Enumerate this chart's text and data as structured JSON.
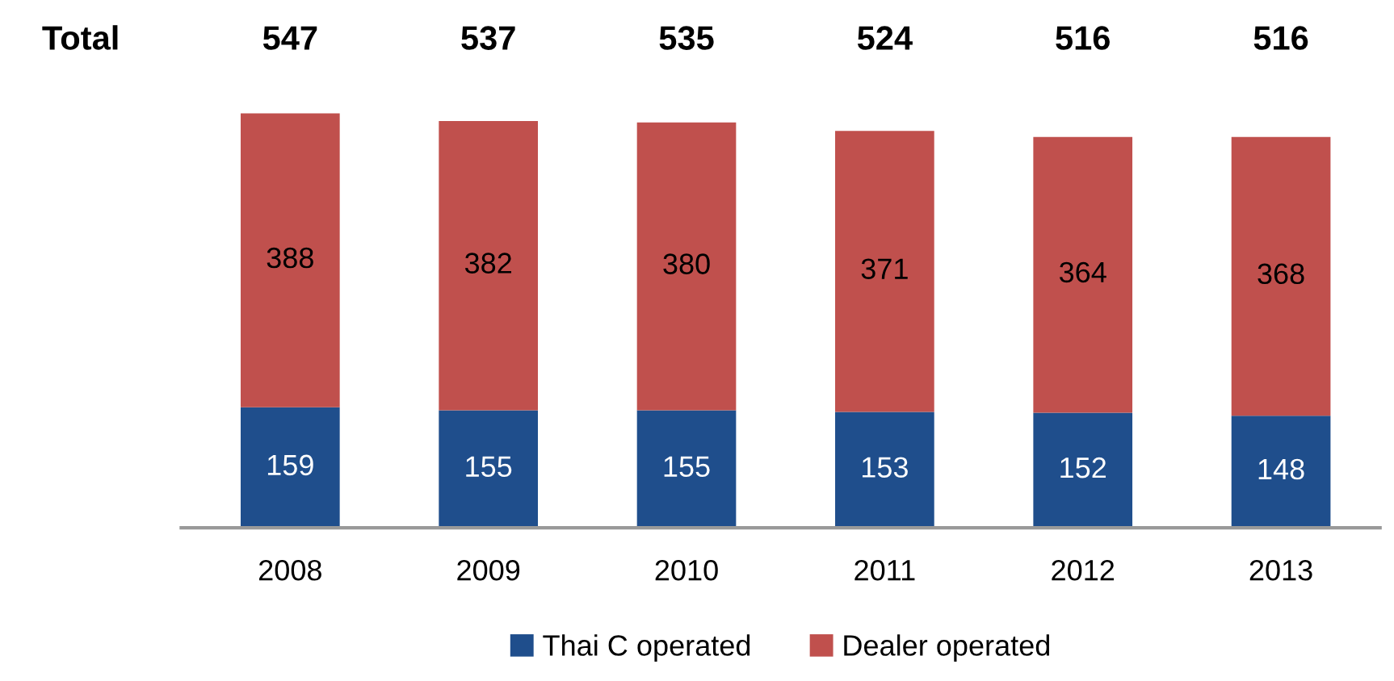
{
  "chart_data": {
    "type": "bar",
    "stacked": true,
    "categories": [
      "2008",
      "2009",
      "2010",
      "2011",
      "2012",
      "2013"
    ],
    "series": [
      {
        "name": "Thai C operated",
        "color": "#1f4e8c",
        "values": [
          159,
          155,
          155,
          153,
          152,
          148
        ]
      },
      {
        "name": "Dealer operated",
        "color": "#c0504d",
        "values": [
          388,
          382,
          380,
          371,
          364,
          368
        ]
      }
    ],
    "data_labels": true,
    "totals": [
      "547",
      "537",
      "535",
      "524",
      "516",
      "516"
    ],
    "annotations": [
      "Total"
    ],
    "legend": "bottom",
    "grid": false
  }
}
